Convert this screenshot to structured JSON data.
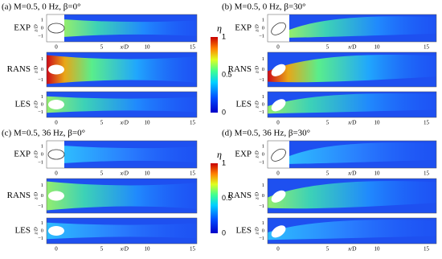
{
  "panels": [
    {
      "title": "(a) M=0.5, 0 Hz, β=0°",
      "rows": [
        "EXP",
        "RANS",
        "LES"
      ],
      "xticks": [
        "0",
        "5",
        "10",
        "15"
      ],
      "xlabel": "x/D",
      "yticks": [
        "1",
        "0",
        "−1"
      ],
      "ylabel": "z/D"
    },
    {
      "title": "(b) M=0.5, 0 Hz, β=30°",
      "rows": [
        "EXP",
        "RANS",
        "LES"
      ],
      "xticks": [
        "0",
        "5",
        "10",
        "15"
      ],
      "xlabel": "x/D",
      "yticks": [
        "1",
        "0",
        "−1"
      ],
      "ylabel": "z/D"
    },
    {
      "title": "(c) M=0.5, 36 Hz, β=0°",
      "rows": [
        "EXP",
        "RANS",
        "LES"
      ],
      "xticks": [
        "0",
        "5",
        "10",
        "15"
      ],
      "xlabel": "x/D",
      "yticks": [
        "1",
        "0",
        "−1"
      ],
      "ylabel": "z/D"
    },
    {
      "title": "(d) M=0.5, 36 Hz, β=30°",
      "rows": [
        "EXP",
        "RANS",
        "LES"
      ],
      "xticks": [
        "0",
        "5",
        "10",
        "15"
      ],
      "xlabel": "x/D",
      "yticks": [
        "1",
        "0",
        "−1"
      ],
      "ylabel": "z/D"
    }
  ],
  "colorbars": [
    {
      "label": "η",
      "ticks": [
        "1",
        "0.5",
        "0"
      ]
    },
    {
      "label": "η",
      "ticks": [
        "1",
        "0.5",
        "0"
      ]
    }
  ]
}
